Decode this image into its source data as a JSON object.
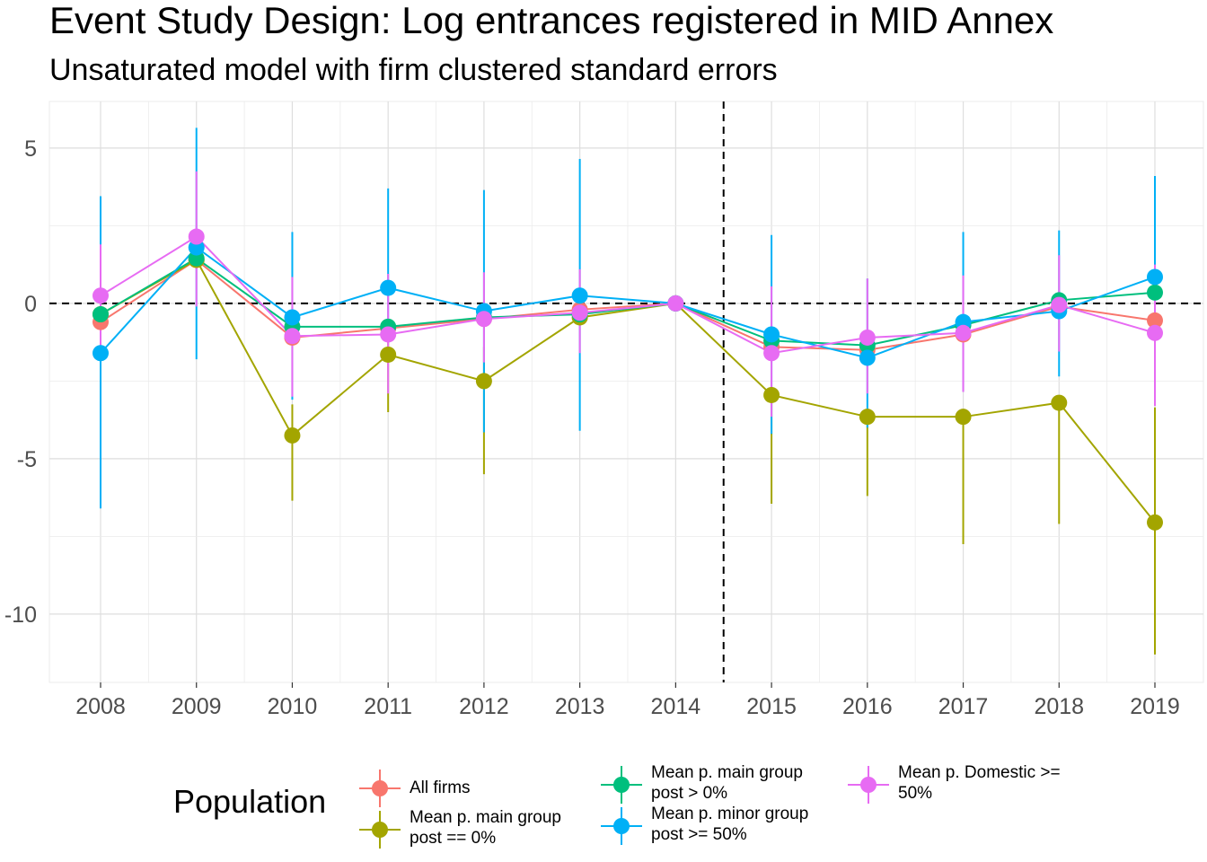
{
  "title": "Event Study Design: Log entrances registered in MID Annex",
  "subtitle": "Unsaturated model with firm clustered standard errors",
  "chart_data": {
    "type": "line",
    "x": [
      2008,
      2009,
      2010,
      2011,
      2012,
      2013,
      2014,
      2015,
      2016,
      2017,
      2018,
      2019
    ],
    "x_tick_labels": [
      "2008",
      "2009",
      "2010",
      "2011",
      "2012",
      "2013",
      "2014",
      "2015",
      "2016",
      "2017",
      "2018",
      "2019"
    ],
    "y_ticks": [
      5,
      0,
      -5,
      -10
    ],
    "y_tick_labels": [
      "5",
      "0",
      "-5",
      "-10"
    ],
    "ylim": [
      -12.2,
      6.5
    ],
    "grid": true,
    "reference_lines": {
      "horizontal_y": 0,
      "vertical_x": 2014.5,
      "style": "dashed"
    },
    "legend_position": "bottom",
    "legend_title": "Population",
    "series": [
      {
        "name": "All firms",
        "color": "#F8766D",
        "values": [
          -0.6,
          1.4,
          -1.1,
          -0.8,
          -0.5,
          -0.2,
          0.0,
          -1.4,
          -1.5,
          -1.0,
          -0.1,
          -0.55
        ],
        "lower": [
          null,
          null,
          null,
          null,
          null,
          null,
          0.0,
          null,
          null,
          null,
          null,
          null
        ],
        "upper": [
          null,
          null,
          null,
          null,
          null,
          null,
          0.0,
          null,
          null,
          null,
          null,
          null
        ]
      },
      {
        "name": "Mean p. main group\npost == 0%",
        "color": "#A3A500",
        "values": [
          -0.35,
          1.4,
          -4.25,
          -1.65,
          -2.5,
          -0.45,
          0.0,
          -2.95,
          -3.65,
          -3.65,
          -3.2,
          -7.05
        ],
        "lower": [
          null,
          null,
          -6.35,
          -3.5,
          -5.5,
          null,
          0.0,
          -6.45,
          -6.2,
          -7.75,
          -7.1,
          -11.3
        ],
        "upper": [
          null,
          null,
          -3.25,
          -0.85,
          -1.4,
          null,
          0.0,
          null,
          null,
          null,
          null,
          -3.35
        ]
      },
      {
        "name": "Mean p. main group\npost > 0%",
        "color": "#00BF7D",
        "values": [
          -0.35,
          1.45,
          -0.75,
          -0.75,
          -0.45,
          -0.35,
          0.0,
          -1.2,
          -1.35,
          -0.7,
          0.1,
          0.35
        ],
        "lower": [
          null,
          null,
          null,
          null,
          null,
          null,
          0.0,
          null,
          null,
          null,
          null,
          null
        ],
        "upper": [
          null,
          null,
          null,
          null,
          null,
          null,
          0.0,
          null,
          null,
          null,
          null,
          null
        ]
      },
      {
        "name": "Mean p. minor group\npost >= 50%",
        "color": "#00B0F6",
        "values": [
          -1.6,
          1.8,
          -0.45,
          0.5,
          -0.25,
          0.25,
          0.0,
          -1.0,
          -1.75,
          -0.6,
          -0.25,
          0.85
        ],
        "lower": [
          -6.6,
          -1.8,
          -3.1,
          -1.1,
          -4.15,
          -4.1,
          0.0,
          -4.2,
          -4.0,
          -2.85,
          -2.35,
          -1.2
        ],
        "upper": [
          3.45,
          5.65,
          2.3,
          3.7,
          3.65,
          4.65,
          0.0,
          2.2,
          0.8,
          2.3,
          2.35,
          4.1
        ]
      },
      {
        "name": "Mean p. Domestic >=\n50%",
        "color": "#E76BF3",
        "values": [
          0.25,
          2.15,
          -1.05,
          -1.0,
          -0.5,
          -0.3,
          0.0,
          -1.6,
          -1.1,
          -0.95,
          -0.05,
          -0.95
        ],
        "lower": [
          -1.4,
          -0.1,
          -3.0,
          -2.9,
          -1.9,
          -1.6,
          0.0,
          -3.65,
          -2.9,
          -2.85,
          -1.55,
          -3.3
        ],
        "upper": [
          1.9,
          4.25,
          0.85,
          0.95,
          1.0,
          1.1,
          0.0,
          0.55,
          0.8,
          0.9,
          1.55,
          1.25
        ]
      }
    ]
  }
}
